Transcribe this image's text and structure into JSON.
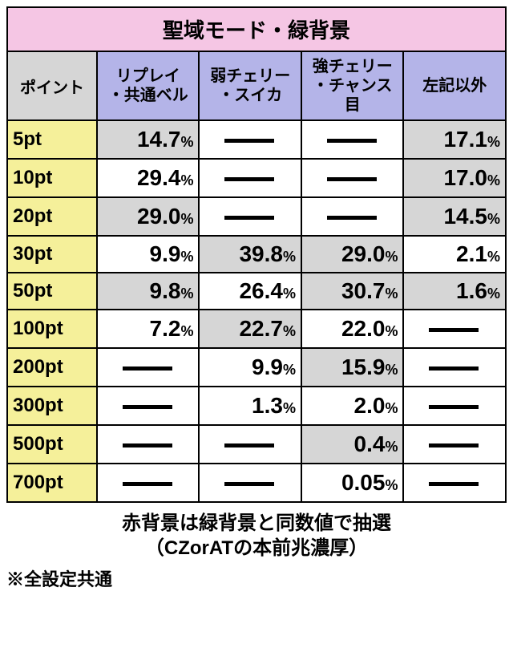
{
  "title": "聖域モード・緑背景",
  "columns": {
    "point": "ポイント",
    "c1_l1": "リプレイ",
    "c1_l2": "・共通ベル",
    "c2_l1": "弱チェリー",
    "c2_l2": "・スイカ",
    "c3_l1": "強チェリー",
    "c3_l2": "・チャンス目",
    "c4": "左記以外"
  },
  "rows": [
    {
      "pt": "5pt",
      "c1": "14.7",
      "c2": null,
      "c3": null,
      "c4": "17.1",
      "shade": [
        "c1",
        "c4"
      ]
    },
    {
      "pt": "10pt",
      "c1": "29.4",
      "c2": null,
      "c3": null,
      "c4": "17.0",
      "shade": [
        "c4"
      ]
    },
    {
      "pt": "20pt",
      "c1": "29.0",
      "c2": null,
      "c3": null,
      "c4": "14.5",
      "shade": [
        "c1",
        "c4"
      ]
    },
    {
      "pt": "30pt",
      "c1": "9.9",
      "c2": "39.8",
      "c3": "29.0",
      "c4": "2.1",
      "shade": [
        "c2",
        "c3"
      ]
    },
    {
      "pt": "50pt",
      "c1": "9.8",
      "c2": "26.4",
      "c3": "30.7",
      "c4": "1.6",
      "shade": [
        "c1",
        "c3",
        "c4"
      ]
    },
    {
      "pt": "100pt",
      "c1": "7.2",
      "c2": "22.7",
      "c3": "22.0",
      "c4": null,
      "shade": [
        "c2"
      ]
    },
    {
      "pt": "200pt",
      "c1": null,
      "c2": "9.9",
      "c3": "15.9",
      "c4": null,
      "shade": [
        "c3"
      ]
    },
    {
      "pt": "300pt",
      "c1": null,
      "c2": "1.3",
      "c3": "2.0",
      "c4": null,
      "shade": []
    },
    {
      "pt": "500pt",
      "c1": null,
      "c2": null,
      "c3": "0.4",
      "c4": null,
      "shade": [
        "c3"
      ]
    },
    {
      "pt": "700pt",
      "c1": null,
      "c2": null,
      "c3": "0.05",
      "c4": null,
      "shade": []
    }
  ],
  "notes": {
    "center_l1": "赤背景は緑背景と同数値で抽選",
    "center_l2": "（CZorATの本前兆濃厚）",
    "left": "※全設定共通"
  },
  "pct": "%"
}
